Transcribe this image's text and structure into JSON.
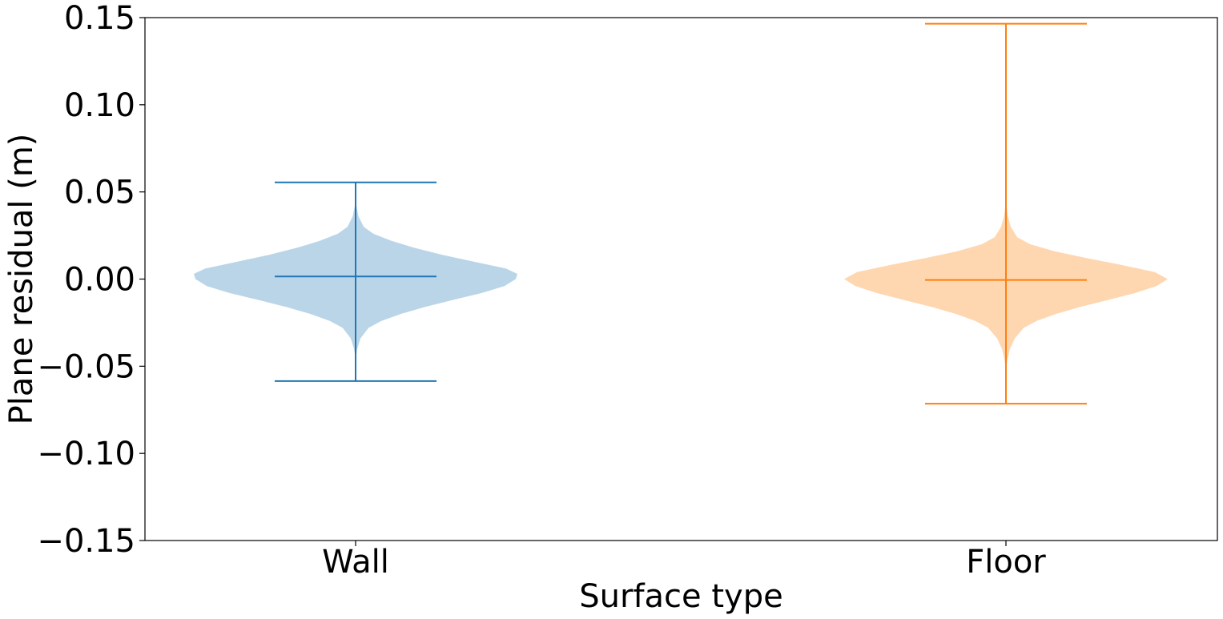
{
  "chart_data": {
    "type": "violin",
    "title": "",
    "xlabel": "Surface type",
    "ylabel": "Plane residual (m)",
    "ylim": [
      -0.15,
      0.15
    ],
    "yticks": [
      -0.15,
      -0.1,
      -0.05,
      0.0,
      0.05,
      0.1,
      0.15
    ],
    "ytick_labels": [
      "−0.15",
      "−0.10",
      "−0.05",
      "0.00",
      "0.05",
      "0.10",
      "0.15"
    ],
    "categories": [
      "Wall",
      "Floor"
    ],
    "grid": false,
    "series": [
      {
        "category": "Wall",
        "color": "#1f77b4",
        "fill": "#bad5e8",
        "min": -0.0585,
        "max": 0.0555,
        "median": 0.0015,
        "density": [
          [
            -0.046,
            0.0
          ],
          [
            -0.04,
            0.01
          ],
          [
            -0.034,
            0.03
          ],
          [
            -0.028,
            0.08
          ],
          [
            -0.024,
            0.16
          ],
          [
            -0.02,
            0.28
          ],
          [
            -0.016,
            0.43
          ],
          [
            -0.012,
            0.6
          ],
          [
            -0.008,
            0.78
          ],
          [
            -0.004,
            0.92
          ],
          [
            0.0,
            0.99
          ],
          [
            0.003,
            1.0
          ],
          [
            0.006,
            0.93
          ],
          [
            0.01,
            0.73
          ],
          [
            0.014,
            0.53
          ],
          [
            0.018,
            0.36
          ],
          [
            0.022,
            0.22
          ],
          [
            0.026,
            0.11
          ],
          [
            0.03,
            0.05
          ],
          [
            0.036,
            0.018
          ],
          [
            0.042,
            0.005
          ],
          [
            0.046,
            0.0
          ]
        ]
      },
      {
        "category": "Floor",
        "color": "#ff7f0e",
        "fill": "#fed7b1",
        "min": -0.0715,
        "max": 0.1465,
        "median": -0.0005,
        "density": [
          [
            -0.052,
            0.0
          ],
          [
            -0.046,
            0.01
          ],
          [
            -0.04,
            0.025
          ],
          [
            -0.034,
            0.055
          ],
          [
            -0.028,
            0.11
          ],
          [
            -0.024,
            0.19
          ],
          [
            -0.02,
            0.31
          ],
          [
            -0.016,
            0.46
          ],
          [
            -0.012,
            0.63
          ],
          [
            -0.008,
            0.8
          ],
          [
            -0.004,
            0.93
          ],
          [
            0.0,
            1.0
          ],
          [
            0.004,
            0.92
          ],
          [
            0.008,
            0.72
          ],
          [
            0.012,
            0.5
          ],
          [
            0.016,
            0.3
          ],
          [
            0.02,
            0.15
          ],
          [
            0.024,
            0.07
          ],
          [
            0.03,
            0.03
          ],
          [
            0.036,
            0.012
          ],
          [
            0.042,
            0.004
          ],
          [
            0.048,
            0.0
          ]
        ]
      }
    ]
  }
}
